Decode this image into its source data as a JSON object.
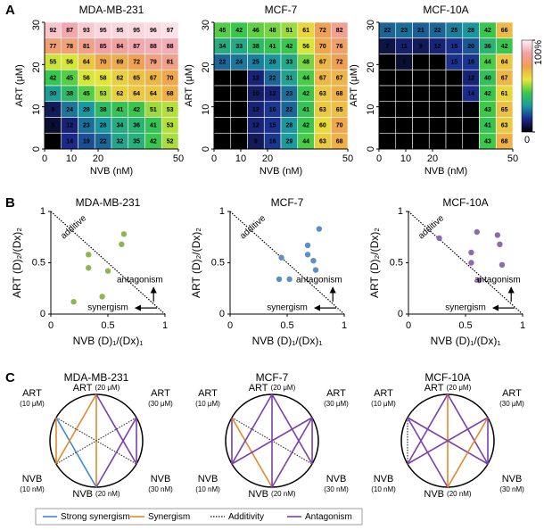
{
  "panel_labels": [
    "A",
    "B",
    "C"
  ],
  "chart_data": [
    {
      "type": "heatmap",
      "title": "MDA-MB-231",
      "x_label": "NVB (nM)",
      "y_label": "ART (μM)",
      "xlim": [
        0,
        50
      ],
      "xticks": [
        0,
        10,
        20,
        50
      ],
      "ylim": [
        0,
        30
      ],
      "yticks": [
        0,
        10,
        20,
        30
      ],
      "z": [
        [
          92,
          87,
          93,
          95,
          95,
          95,
          96,
          97
        ],
        [
          77,
          78,
          81,
          85,
          84,
          87,
          88,
          88
        ],
        [
          55,
          56,
          64,
          70,
          69,
          72,
          79,
          81
        ],
        [
          42,
          45,
          56,
          58,
          62,
          65,
          67,
          70
        ],
        [
          30,
          38,
          45,
          53,
          62,
          64,
          64,
          68
        ],
        [
          9,
          24,
          28,
          38,
          41,
          42,
          51,
          53
        ],
        [
          5,
          12,
          23,
          28,
          34,
          36,
          41,
          53
        ],
        [
          0,
          14,
          19,
          22,
          32,
          35,
          42,
          52
        ]
      ]
    },
    {
      "type": "heatmap",
      "title": "MCF-7",
      "x_label": "NVB (nM)",
      "y_label": "ART (μM)",
      "xlim": [
        0,
        50
      ],
      "xticks": [
        0,
        10,
        20,
        50
      ],
      "ylim": [
        0,
        30
      ],
      "yticks": [
        0,
        10,
        20,
        30
      ],
      "z": [
        [
          45,
          42,
          46,
          48,
          51,
          61,
          72,
          82
        ],
        [
          34,
          33,
          38,
          41,
          42,
          56,
          70,
          76
        ],
        [
          22,
          24,
          25,
          28,
          33,
          48,
          67,
          72
        ],
        [
          0,
          0,
          12,
          22,
          31,
          44,
          67,
          67
        ],
        [
          0,
          0,
          10,
          12,
          23,
          42,
          63,
          68
        ],
        [
          0,
          0,
          12,
          16,
          22,
          41,
          63,
          65
        ],
        [
          0,
          0,
          12,
          15,
          28,
          42,
          60,
          70
        ],
        [
          0,
          0,
          9,
          16,
          29,
          44,
          63,
          68
        ]
      ]
    },
    {
      "type": "heatmap",
      "title": "MCF-10A",
      "x_label": "NVB (nM)",
      "y_label": "ART (μM)",
      "xlim": [
        0,
        50
      ],
      "xticks": [
        0,
        10,
        20,
        50
      ],
      "ylim": [
        0,
        30
      ],
      "yticks": [
        0,
        10,
        20,
        30
      ],
      "z": [
        [
          22,
          23,
          21,
          22,
          25,
          28,
          42,
          66
        ],
        [
          7,
          11,
          9,
          12,
          15,
          20,
          36,
          42
        ],
        [
          0,
          5,
          0,
          0,
          15,
          16,
          44,
          64
        ],
        [
          0,
          0,
          0,
          0,
          0,
          12,
          40,
          67
        ],
        [
          0,
          0,
          0,
          0,
          0,
          14,
          42,
          61
        ],
        [
          0,
          0,
          0,
          0,
          0,
          0,
          43,
          65
        ],
        [
          0,
          0,
          0,
          0,
          0,
          0,
          41,
          63
        ],
        [
          0,
          0,
          0,
          0,
          0,
          0,
          43,
          68
        ]
      ],
      "zlim": [
        0,
        100
      ],
      "colorbar_ticks": [
        0,
        {
          "value": 100,
          "label": "100%"
        }
      ],
      "colormap": [
        "#000000",
        "#1c2a8c",
        "#1a9aa0",
        "#3cc84a",
        "#e6e838",
        "#f0a050",
        "#f2a0a8",
        "#fff4f8"
      ]
    },
    {
      "type": "scatter",
      "title": "MDA-MB-231",
      "x_label": "NVB (D)₁/(Dx)₁",
      "y_label": "ART (D)₂/(Dx)₂",
      "xlim": [
        0,
        1
      ],
      "ylim": [
        0,
        1
      ],
      "xticks": [
        0,
        0.5,
        1
      ],
      "yticks": [
        0,
        0.5,
        1
      ],
      "color": "#8fb552",
      "x": [
        0.2,
        0.33,
        0.33,
        0.45,
        0.5,
        0.62,
        0.64
      ],
      "values": [
        0.12,
        0.58,
        0.45,
        0.17,
        0.42,
        0.68,
        0.78
      ],
      "annotations": [
        "additive",
        "antagonism",
        "synergism"
      ]
    },
    {
      "type": "scatter",
      "title": "MCF-7",
      "x_label": "NVB (D)₁/(Dx)₁",
      "y_label": "ART (D)₂/(Dx)₂",
      "xlim": [
        0,
        1
      ],
      "ylim": [
        0,
        1
      ],
      "xticks": [
        0,
        0.5,
        1
      ],
      "yticks": [
        0,
        0.5,
        1
      ],
      "color": "#5b8fc8",
      "x": [
        0.43,
        0.45,
        0.52,
        0.68,
        0.68,
        0.73,
        0.75,
        0.78
      ],
      "values": [
        0.34,
        0.55,
        0.34,
        0.67,
        0.58,
        0.52,
        0.43,
        0.83
      ],
      "annotations": [
        "additive",
        "antagonism",
        "synergism"
      ]
    },
    {
      "type": "scatter",
      "title": "MCF-10A",
      "x_label": "NVB (D)₁/(Dx)₁",
      "y_label": "ART (D)₂/(Dx)₂",
      "xlim": [
        0,
        1
      ],
      "ylim": [
        0,
        1
      ],
      "xticks": [
        0,
        0.5,
        1
      ],
      "yticks": [
        0,
        0.5,
        1
      ],
      "color": "#8e6aae",
      "x": [
        0.27,
        0.55,
        0.55,
        0.6,
        0.62,
        0.78,
        0.8,
        0.82
      ],
      "values": [
        0.74,
        0.6,
        0.5,
        0.8,
        0.33,
        0.77,
        0.68,
        0.48
      ],
      "annotations": [
        "additive",
        "antagonism",
        "synergism"
      ]
    }
  ],
  "networks": {
    "items": [
      {
        "title": "MDA-MB-231",
        "nodes": [
          {
            "label": "ART",
            "sub": "(10 μM)"
          },
          {
            "label": "ART",
            "sub": "(20 μM)"
          },
          {
            "label": "ART",
            "sub": "(30 μM)"
          },
          {
            "label": "NVB",
            "sub": "(30 nM)"
          },
          {
            "label": "NVB",
            "sub": "(20 nM)"
          },
          {
            "label": "NVB",
            "sub": "(10 nM)"
          }
        ],
        "edges": [
          {
            "from": 0,
            "to": 4,
            "type": "Strong synergism"
          },
          {
            "from": 0,
            "to": 3,
            "type": "Additivity"
          },
          {
            "from": 0,
            "to": 5,
            "type": "Synergism"
          },
          {
            "from": 1,
            "to": 5,
            "type": "Synergism"
          },
          {
            "from": 1,
            "to": 4,
            "type": "Synergism"
          },
          {
            "from": 1,
            "to": 3,
            "type": "Antagonism"
          },
          {
            "from": 2,
            "to": 3,
            "type": "Antagonism"
          },
          {
            "from": 2,
            "to": 4,
            "type": "Antagonism"
          },
          {
            "from": 2,
            "to": 5,
            "type": "Additivity"
          }
        ]
      },
      {
        "title": "MCF-7",
        "nodes": [
          {
            "label": "ART",
            "sub": "(10 μM)"
          },
          {
            "label": "ART",
            "sub": "(20 μM)"
          },
          {
            "label": "ART",
            "sub": "(30 μM)"
          },
          {
            "label": "NVB",
            "sub": "(30 nM)"
          },
          {
            "label": "NVB",
            "sub": "(20 nM)"
          },
          {
            "label": "NVB",
            "sub": "(10 nM)"
          }
        ],
        "edges": [
          {
            "from": 0,
            "to": 5,
            "type": "Antagonism"
          },
          {
            "from": 0,
            "to": 4,
            "type": "Synergism"
          },
          {
            "from": 0,
            "to": 3,
            "type": "Additivity"
          },
          {
            "from": 1,
            "to": 5,
            "type": "Antagonism"
          },
          {
            "from": 1,
            "to": 4,
            "type": "Antagonism"
          },
          {
            "from": 1,
            "to": 3,
            "type": "Antagonism"
          },
          {
            "from": 2,
            "to": 5,
            "type": "Antagonism"
          },
          {
            "from": 2,
            "to": 4,
            "type": "Antagonism"
          },
          {
            "from": 2,
            "to": 3,
            "type": "Antagonism"
          }
        ]
      },
      {
        "title": "MCF-10A",
        "nodes": [
          {
            "label": "ART",
            "sub": "(10 μM)"
          },
          {
            "label": "ART",
            "sub": "(20 μM)"
          },
          {
            "label": "ART",
            "sub": "(30 μM)"
          },
          {
            "label": "NVB",
            "sub": "(30 nM)"
          },
          {
            "label": "NVB",
            "sub": "(20 nM)"
          },
          {
            "label": "NVB",
            "sub": "(10 nM)"
          }
        ],
        "edges": [
          {
            "from": 0,
            "to": 5,
            "type": "Additivity"
          },
          {
            "from": 0,
            "to": 4,
            "type": "Antagonism"
          },
          {
            "from": 0,
            "to": 3,
            "type": "Antagonism"
          },
          {
            "from": 1,
            "to": 5,
            "type": "Antagonism"
          },
          {
            "from": 1,
            "to": 4,
            "type": "Synergism"
          },
          {
            "from": 1,
            "to": 3,
            "type": "Antagonism"
          },
          {
            "from": 2,
            "to": 5,
            "type": "Antagonism"
          },
          {
            "from": 2,
            "to": 4,
            "type": "Synergism"
          },
          {
            "from": 2,
            "to": 3,
            "type": "Antagonism"
          }
        ]
      }
    ],
    "legend": [
      {
        "label": "Strong synergism",
        "color": "#3a8ad8"
      },
      {
        "label": "Synergism",
        "color": "#e08a2a"
      },
      {
        "label": "Additivity",
        "color": "#333333",
        "dash": true
      },
      {
        "label": "Antagonism",
        "color": "#7a3fb0"
      }
    ]
  }
}
